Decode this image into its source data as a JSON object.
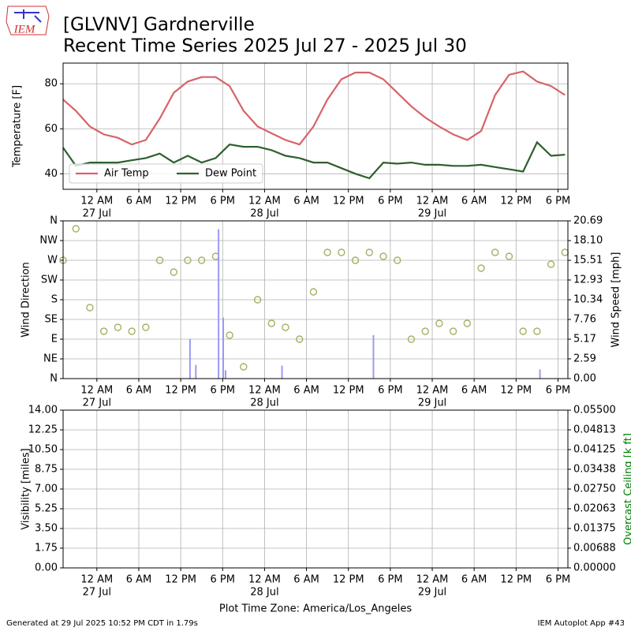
{
  "header": {
    "logo": "IEM",
    "title": "[GLVNV] Gardnerville",
    "subtitle": "Recent Time Series 2025 Jul 27 - 2025 Jul 30"
  },
  "footer": {
    "left": "Generated at 29 Jul 2025 10:52 PM CDT in 1.79s",
    "right": "IEM Autoplot App #43"
  },
  "chart_data": [
    {
      "type": "line",
      "ylabel": "Temperature [F]",
      "grid": true,
      "legend": "lower left",
      "xlim": [
        "2025-07-26T19:10",
        "2025-07-29T19:25"
      ],
      "xticks": [
        {
          "value": "2025-07-27T00:00",
          "label": "12 AM"
        },
        {
          "value": "2025-07-27T06:00",
          "label": "6 AM"
        },
        {
          "value": "2025-07-27T12:00",
          "label": "12 PM"
        },
        {
          "value": "2025-07-27T18:00",
          "label": "6 PM"
        },
        {
          "value": "2025-07-28T00:00",
          "label": "12 AM"
        },
        {
          "value": "2025-07-28T06:00",
          "label": "6 AM"
        },
        {
          "value": "2025-07-28T12:00",
          "label": "12 PM"
        },
        {
          "value": "2025-07-28T18:00",
          "label": "6 PM"
        },
        {
          "value": "2025-07-29T00:00",
          "label": "12 AM"
        },
        {
          "value": "2025-07-29T06:00",
          "label": "6 AM"
        },
        {
          "value": "2025-07-29T12:00",
          "label": "12 PM"
        },
        {
          "value": "2025-07-29T18:00",
          "label": "6 PM"
        }
      ],
      "xdates": [
        {
          "value": "2025-07-27T00:00",
          "label": "27 Jul"
        },
        {
          "value": "2025-07-28T00:00",
          "label": "28 Jul"
        },
        {
          "value": "2025-07-29T00:00",
          "label": "29 Jul"
        }
      ],
      "ylim": [
        33.1,
        89.2
      ],
      "yticks": [
        40,
        60,
        80
      ],
      "x": [
        "2025-07-26T19:10",
        "2025-07-26T21:00",
        "2025-07-26T23:00",
        "2025-07-27T01:00",
        "2025-07-27T03:00",
        "2025-07-27T05:00",
        "2025-07-27T07:00",
        "2025-07-27T09:00",
        "2025-07-27T11:00",
        "2025-07-27T13:00",
        "2025-07-27T15:00",
        "2025-07-27T17:00",
        "2025-07-27T19:00",
        "2025-07-27T21:00",
        "2025-07-27T23:00",
        "2025-07-28T01:00",
        "2025-07-28T03:00",
        "2025-07-28T05:00",
        "2025-07-28T07:00",
        "2025-07-28T09:00",
        "2025-07-28T11:00",
        "2025-07-28T13:00",
        "2025-07-28T15:00",
        "2025-07-28T17:00",
        "2025-07-28T19:00",
        "2025-07-28T21:00",
        "2025-07-28T23:00",
        "2025-07-29T01:00",
        "2025-07-29T03:00",
        "2025-07-29T05:00",
        "2025-07-29T07:00",
        "2025-07-29T09:00",
        "2025-07-29T11:00",
        "2025-07-29T13:00",
        "2025-07-29T15:00",
        "2025-07-29T17:00",
        "2025-07-29T19:00"
      ],
      "series": [
        {
          "name": "Air Temp",
          "color": "#d8626a",
          "values": [
            73,
            68,
            61,
            57.5,
            56,
            53,
            55,
            64.5,
            76,
            81,
            83,
            83,
            79,
            68,
            61,
            58,
            55,
            53,
            61,
            73,
            82,
            85,
            85,
            82,
            76,
            70,
            65,
            61,
            57.5,
            55,
            59,
            75,
            84,
            85.5,
            81,
            79,
            75
          ]
        },
        {
          "name": "Dew Point",
          "color": "#2f5f2f",
          "values": [
            51.6,
            43.5,
            45,
            45,
            45,
            46,
            47,
            49,
            45,
            48,
            45,
            47,
            53,
            52,
            52,
            50.5,
            48,
            47,
            45,
            45,
            42.5,
            40,
            38,
            45,
            44.5,
            45,
            44,
            44,
            43.5,
            43.5,
            44,
            43,
            42,
            41,
            54,
            48,
            48.5
          ]
        }
      ]
    },
    {
      "type": "wind",
      "ylabel": "Wind Direction",
      "y2label": "Wind Speed [mph]",
      "grid": true,
      "xlim": [
        "2025-07-26T19:10",
        "2025-07-29T19:25"
      ],
      "xticks": [
        {
          "value": "2025-07-27T00:00",
          "label": "12 AM"
        },
        {
          "value": "2025-07-27T06:00",
          "label": "6 AM"
        },
        {
          "value": "2025-07-27T12:00",
          "label": "12 PM"
        },
        {
          "value": "2025-07-27T18:00",
          "label": "6 PM"
        },
        {
          "value": "2025-07-28T00:00",
          "label": "12 AM"
        },
        {
          "value": "2025-07-28T06:00",
          "label": "6 AM"
        },
        {
          "value": "2025-07-28T12:00",
          "label": "12 PM"
        },
        {
          "value": "2025-07-28T18:00",
          "label": "6 PM"
        },
        {
          "value": "2025-07-29T00:00",
          "label": "12 AM"
        },
        {
          "value": "2025-07-29T06:00",
          "label": "6 AM"
        },
        {
          "value": "2025-07-29T12:00",
          "label": "12 PM"
        },
        {
          "value": "2025-07-29T18:00",
          "label": "6 PM"
        }
      ],
      "xdates": [
        {
          "value": "2025-07-27T00:00",
          "label": "27 Jul"
        },
        {
          "value": "2025-07-28T00:00",
          "label": "28 Jul"
        },
        {
          "value": "2025-07-29T00:00",
          "label": "29 Jul"
        }
      ],
      "ylim": [
        0,
        360
      ],
      "yticks": [
        {
          "value": 0,
          "label": "N"
        },
        {
          "value": 45,
          "label": "NE"
        },
        {
          "value": 90,
          "label": "E"
        },
        {
          "value": 135,
          "label": "SE"
        },
        {
          "value": 180,
          "label": "S"
        },
        {
          "value": 225,
          "label": "SW"
        },
        {
          "value": 270,
          "label": "W"
        },
        {
          "value": 315,
          "label": "NW"
        },
        {
          "value": 360,
          "label": "N"
        }
      ],
      "y2lim": [
        0,
        20.69
      ],
      "y2ticks": [
        {
          "value": 0,
          "label": "0.00"
        },
        2.59,
        5.17,
        7.76,
        10.34,
        12.93,
        15.51,
        {
          "value": 18.1,
          "label": "18.10"
        },
        20.69
      ],
      "series": [
        {
          "marker": "circle",
          "color": "#a9ae62",
          "x": [
            "2025-07-26T19:10",
            "2025-07-26T21:00",
            "2025-07-26T23:00",
            "2025-07-27T01:00",
            "2025-07-27T03:00",
            "2025-07-27T05:00",
            "2025-07-27T07:00",
            "2025-07-27T09:00",
            "2025-07-27T11:00",
            "2025-07-27T13:00",
            "2025-07-27T15:00",
            "2025-07-27T17:00",
            "2025-07-27T19:00",
            "2025-07-27T21:00",
            "2025-07-27T23:00",
            "2025-07-28T01:00",
            "2025-07-28T03:00",
            "2025-07-28T05:00",
            "2025-07-28T07:00",
            "2025-07-28T09:00",
            "2025-07-28T11:00",
            "2025-07-28T13:00",
            "2025-07-28T15:00",
            "2025-07-28T17:00",
            "2025-07-28T19:00",
            "2025-07-28T21:00",
            "2025-07-28T23:00",
            "2025-07-29T01:00",
            "2025-07-29T03:00",
            "2025-07-29T05:00",
            "2025-07-29T07:00",
            "2025-07-29T09:00",
            "2025-07-29T11:00",
            "2025-07-29T13:00",
            "2025-07-29T15:00",
            "2025-07-29T17:00",
            "2025-07-29T19:00"
          ],
          "values": [
            270,
            342,
            162,
            108,
            117,
            108,
            117,
            270,
            243,
            270,
            270,
            279,
            99,
            27,
            180,
            126,
            117,
            90,
            198,
            288,
            288,
            270,
            288,
            279,
            270,
            90,
            108,
            126,
            108,
            126,
            252,
            288,
            279,
            108,
            108,
            261,
            288
          ]
        },
        {
          "axis": "y2",
          "color": "#9a9af5",
          "x": [
            "2025-07-27T13:20",
            "2025-07-27T14:10",
            "2025-07-27T17:25",
            "2025-07-27T18:05",
            "2025-07-27T18:25",
            "2025-07-28T02:30",
            "2025-07-28T15:35",
            "2025-07-29T15:25"
          ],
          "values": [
            5.2,
            1.8,
            19.6,
            8,
            1.1,
            1.7,
            5.7,
            1.2
          ]
        }
      ]
    },
    {
      "type": "line",
      "ylabel": "Visibility [miles]",
      "y2label": "Overcast Ceiling [k ft]",
      "y2label_color": "green",
      "xlabel": "Plot Time Zone: America/Los_Angeles",
      "grid": true,
      "xlim": [
        "2025-07-26T19:10",
        "2025-07-29T19:25"
      ],
      "xticks": [
        {
          "value": "2025-07-27T00:00",
          "label": "12 AM"
        },
        {
          "value": "2025-07-27T06:00",
          "label": "6 AM"
        },
        {
          "value": "2025-07-27T12:00",
          "label": "12 PM"
        },
        {
          "value": "2025-07-27T18:00",
          "label": "6 PM"
        },
        {
          "value": "2025-07-28T00:00",
          "label": "12 AM"
        },
        {
          "value": "2025-07-28T06:00",
          "label": "6 AM"
        },
        {
          "value": "2025-07-28T12:00",
          "label": "12 PM"
        },
        {
          "value": "2025-07-28T18:00",
          "label": "6 PM"
        },
        {
          "value": "2025-07-29T00:00",
          "label": "12 AM"
        },
        {
          "value": "2025-07-29T06:00",
          "label": "6 AM"
        },
        {
          "value": "2025-07-29T12:00",
          "label": "12 PM"
        },
        {
          "value": "2025-07-29T18:00",
          "label": "6 PM"
        }
      ],
      "xdates": [
        {
          "value": "2025-07-27T00:00",
          "label": "27 Jul"
        },
        {
          "value": "2025-07-28T00:00",
          "label": "28 Jul"
        },
        {
          "value": "2025-07-29T00:00",
          "label": "29 Jul"
        }
      ],
      "ylim": [
        0,
        14
      ],
      "yticks": [
        {
          "value": 0,
          "label": "0.00"
        },
        1.75,
        {
          "value": 3.5,
          "label": "3.50"
        },
        5.25,
        {
          "value": 7,
          "label": "7.00"
        },
        8.75,
        {
          "value": 10.5,
          "label": "10.50"
        },
        12.25,
        {
          "value": 14,
          "label": "14.00"
        }
      ],
      "y2lim": [
        0,
        0.055
      ],
      "y2ticks": [
        {
          "value": 0,
          "label": "0.00000"
        },
        0.00688,
        0.01375,
        0.02063,
        {
          "value": 0.0275,
          "label": "0.02750"
        },
        0.03438,
        0.04125,
        0.04813,
        {
          "value": 0.055,
          "label": "0.05500"
        }
      ],
      "series": []
    }
  ]
}
